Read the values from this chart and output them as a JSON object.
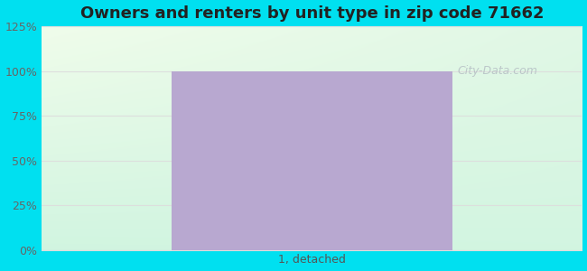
{
  "title": "Owners and renters by unit type in zip code 71662",
  "categories": [
    "1, detached"
  ],
  "bar_value": 100,
  "bar_color": "#b8a8d0",
  "ylim": [
    0,
    125
  ],
  "yticks": [
    0,
    25,
    50,
    75,
    100,
    125
  ],
  "ytick_labels": [
    "0%",
    "25%",
    "50%",
    "75%",
    "100%",
    "125%"
  ],
  "title_fontsize": 13,
  "tick_label_color": "#666666",
  "xlabel_color": "#555555",
  "bg_outer_color": "#00e0f0",
  "grid_color": "#dddddd",
  "watermark": "City-Data.com",
  "bar_width": 0.52
}
